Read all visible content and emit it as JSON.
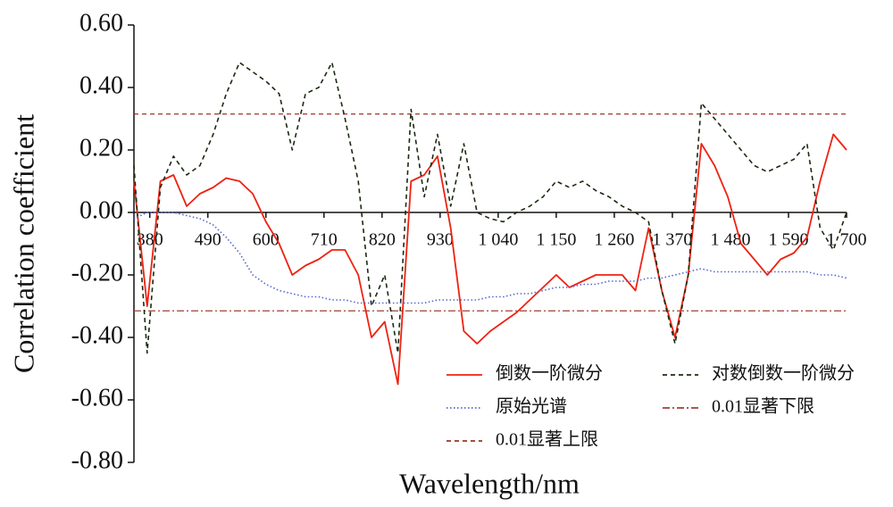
{
  "chart_data": {
    "type": "line",
    "xlabel": "Wavelength/nm",
    "ylabel": "Correlation coefficient",
    "xlim": [
      350,
      1700
    ],
    "ylim": [
      -0.8,
      0.6
    ],
    "xticks": [
      380,
      490,
      600,
      710,
      820,
      930,
      {
        "value": 1040,
        "label": "1 040"
      },
      {
        "value": 1150,
        "label": "1 150"
      },
      {
        "value": 1260,
        "label": "1 260"
      },
      {
        "value": 1370,
        "label": "1 370"
      },
      {
        "value": 1480,
        "label": "1 480"
      },
      {
        "value": 1590,
        "label": "1 590"
      },
      {
        "value": 1700,
        "label": "1 700"
      }
    ],
    "yticks": [
      {
        "value": -0.8,
        "label": "-0.80"
      },
      {
        "value": -0.6,
        "label": "-0.60"
      },
      {
        "value": -0.4,
        "label": "-0.40"
      },
      {
        "value": -0.2,
        "label": "-0.20"
      },
      {
        "value": 0,
        "label": "0.00"
      },
      {
        "value": 0.2,
        "label": "0.20"
      },
      {
        "value": 0.4,
        "label": "0.40"
      },
      {
        "value": 0.6,
        "label": "0.60"
      }
    ],
    "x": [
      350,
      375,
      400,
      425,
      450,
      475,
      500,
      525,
      550,
      575,
      600,
      625,
      650,
      675,
      700,
      725,
      750,
      775,
      800,
      825,
      850,
      875,
      900,
      925,
      950,
      975,
      1000,
      1025,
      1050,
      1075,
      1100,
      1125,
      1150,
      1175,
      1200,
      1225,
      1250,
      1275,
      1300,
      1325,
      1350,
      1375,
      1400,
      1425,
      1450,
      1475,
      1500,
      1525,
      1550,
      1575,
      1600,
      1625,
      1650,
      1675,
      1700
    ],
    "series": [
      {
        "name": "倒数一阶微分",
        "color": "#ee2211",
        "style": "solid",
        "values": [
          0.1,
          -0.3,
          0.1,
          0.12,
          0.02,
          0.06,
          0.08,
          0.11,
          0.1,
          0.06,
          -0.03,
          -0.1,
          -0.2,
          -0.17,
          -0.15,
          -0.12,
          -0.12,
          -0.2,
          -0.4,
          -0.35,
          -0.55,
          0.1,
          0.12,
          0.18,
          -0.05,
          -0.38,
          -0.42,
          -0.38,
          -0.35,
          -0.32,
          -0.28,
          -0.24,
          -0.2,
          -0.24,
          -0.22,
          -0.2,
          -0.2,
          -0.2,
          -0.25,
          -0.05,
          -0.25,
          -0.4,
          -0.2,
          0.22,
          0.15,
          0.05,
          -0.1,
          -0.15,
          -0.2,
          -0.15,
          -0.13,
          -0.08,
          0.1,
          0.25,
          0.2
        ]
      },
      {
        "name": "对数倒数一阶微分",
        "color": "#1a2a10",
        "style": "dashed",
        "values": [
          0.15,
          -0.45,
          0.08,
          0.18,
          0.12,
          0.15,
          0.25,
          0.38,
          0.48,
          0.45,
          0.42,
          0.38,
          0.2,
          0.38,
          0.4,
          0.48,
          0.3,
          0.1,
          -0.3,
          -0.2,
          -0.45,
          0.33,
          0.05,
          0.25,
          0.02,
          0.22,
          0.0,
          -0.02,
          -0.03,
          0.0,
          0.02,
          0.05,
          0.1,
          0.08,
          0.1,
          0.07,
          0.05,
          0.02,
          0.0,
          -0.03,
          -0.25,
          -0.42,
          -0.2,
          0.35,
          0.3,
          0.25,
          0.2,
          0.15,
          0.13,
          0.15,
          0.17,
          0.22,
          -0.05,
          -0.12,
          0.0
        ]
      },
      {
        "name": "原始光谱",
        "color": "#5566cc",
        "style": "dotted",
        "values": [
          -0.02,
          0.0,
          0.0,
          0.0,
          -0.01,
          -0.02,
          -0.04,
          -0.08,
          -0.13,
          -0.2,
          -0.23,
          -0.25,
          -0.26,
          -0.27,
          -0.27,
          -0.28,
          -0.28,
          -0.29,
          -0.29,
          -0.29,
          -0.29,
          -0.29,
          -0.29,
          -0.28,
          -0.28,
          -0.28,
          -0.28,
          -0.27,
          -0.27,
          -0.26,
          -0.26,
          -0.25,
          -0.24,
          -0.24,
          -0.23,
          -0.23,
          -0.22,
          -0.22,
          -0.22,
          -0.21,
          -0.21,
          -0.2,
          -0.19,
          -0.18,
          -0.19,
          -0.19,
          -0.19,
          -0.19,
          -0.19,
          -0.19,
          -0.19,
          -0.19,
          -0.2,
          -0.2,
          -0.21
        ]
      }
    ],
    "thresholds": [
      {
        "name": "0.01显著下限",
        "value": -0.315,
        "color": "#a04030",
        "style": "dashdot"
      },
      {
        "name": "0.01显著上限",
        "value": 0.315,
        "color": "#a03020",
        "style": "dashed"
      }
    ]
  }
}
